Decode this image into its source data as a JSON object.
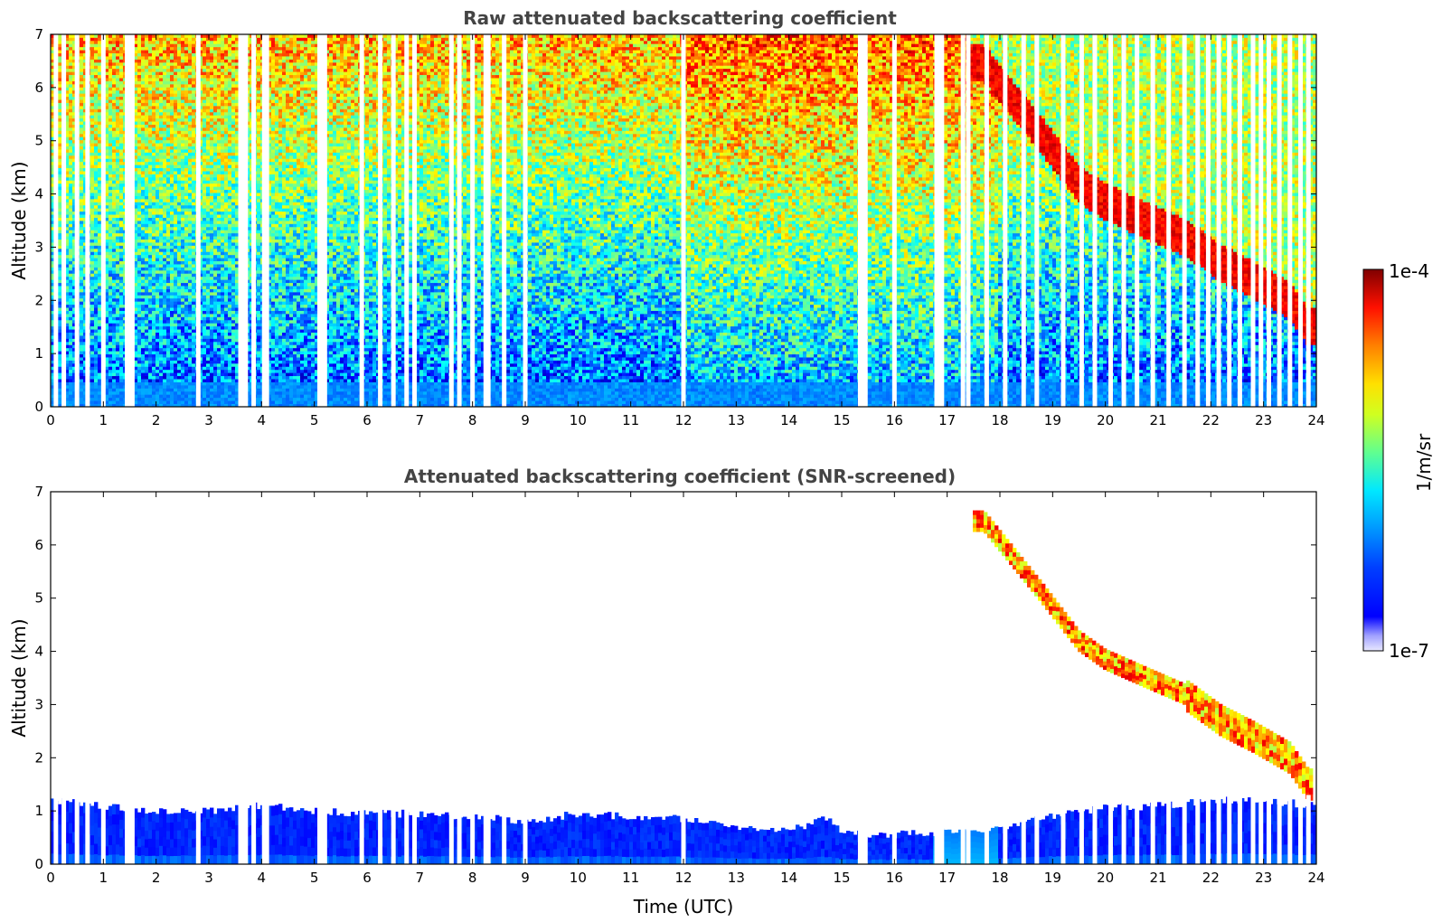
{
  "chart_data": [
    {
      "type": "heatmap",
      "title": "Raw attenuated backscattering coefficient",
      "xlabel": "",
      "ylabel": "Altitude (km)",
      "xlim": [
        0,
        24
      ],
      "ylim": [
        0,
        7
      ],
      "xticks": [
        0,
        1,
        2,
        3,
        4,
        5,
        6,
        7,
        8,
        9,
        10,
        11,
        12,
        13,
        14,
        15,
        16,
        17,
        18,
        19,
        20,
        21,
        22,
        23,
        24
      ],
      "yticks": [
        0,
        1,
        2,
        3,
        4,
        5,
        6,
        7
      ],
      "colorscale": "jet",
      "data_gaps_hours": [
        0.1,
        0.25,
        0.5,
        0.7,
        1.0,
        1.45,
        1.5,
        1.55,
        2.8,
        3.6,
        3.65,
        3.7,
        3.85,
        4.05,
        4.1,
        5.1,
        5.15,
        5.2,
        5.9,
        6.25,
        6.5,
        6.75,
        6.9,
        7.6,
        7.75,
        8.0,
        8.25,
        8.3,
        8.6,
        9.0,
        12.0,
        15.35,
        15.4,
        15.45,
        16.0,
        16.8,
        16.85,
        16.9,
        17.3,
        17.4,
        17.75,
        18.1,
        18.45,
        18.7,
        19.2,
        19.55,
        19.8,
        20.1,
        20.35,
        20.6,
        20.9,
        21.2,
        21.5,
        21.75,
        21.95,
        22.15,
        22.35,
        22.55,
        22.8,
        22.95,
        23.1,
        23.3,
        23.5,
        23.7,
        23.85
      ],
      "features": [
        {
          "name": "boundary layer",
          "x": [
            0,
            24
          ],
          "altitude_km": [
            0,
            0.5
          ],
          "level": "low"
        },
        {
          "name": "cloud layer",
          "x": [
            17.5,
            23.9
          ],
          "altitude_km": [
            [
              6.5,
              6.5
            ],
            [
              5.1,
              5.1
            ],
            [
              3.8,
              3.8
            ],
            [
              3.3,
              3.3
            ],
            [
              2.5,
              2.5
            ],
            [
              1.8,
              1.8
            ]
          ],
          "level": "high"
        }
      ]
    },
    {
      "type": "heatmap",
      "title": "Attenuated backscattering coefficient (SNR-screened)",
      "xlabel": "Time (UTC)",
      "ylabel": "Altitude (km)",
      "xlim": [
        0,
        24
      ],
      "ylim": [
        0,
        7
      ],
      "xticks": [
        0,
        1,
        2,
        3,
        4,
        5,
        6,
        7,
        8,
        9,
        10,
        11,
        12,
        13,
        14,
        15,
        16,
        17,
        18,
        19,
        20,
        21,
        22,
        23,
        24
      ],
      "yticks": [
        0,
        1,
        2,
        3,
        4,
        5,
        6,
        7
      ],
      "colorscale": "jet",
      "boundary_layer_top_km": [
        [
          0,
          1.2
        ],
        [
          1,
          1.1
        ],
        [
          2,
          1.0
        ],
        [
          3,
          1.0
        ],
        [
          4,
          1.1
        ],
        [
          5,
          1.0
        ],
        [
          6,
          0.95
        ],
        [
          7,
          0.95
        ],
        [
          8,
          0.9
        ],
        [
          9,
          0.8
        ],
        [
          10,
          0.95
        ],
        [
          11,
          0.9
        ],
        [
          12,
          0.85
        ],
        [
          13,
          0.7
        ],
        [
          14,
          0.6
        ],
        [
          14.7,
          0.9
        ],
        [
          15,
          0.6
        ],
        [
          16,
          0.55
        ],
        [
          17,
          0.6
        ],
        [
          18,
          0.7
        ],
        [
          19,
          0.9
        ],
        [
          20,
          1.05
        ],
        [
          21,
          1.1
        ],
        [
          22,
          1.2
        ],
        [
          23,
          1.2
        ],
        [
          24,
          1.1
        ]
      ],
      "cloud_path_km": [
        [
          17.7,
          6.45
        ],
        [
          18.8,
          5.1
        ],
        [
          19.5,
          4.2
        ],
        [
          20.0,
          3.85
        ],
        [
          20.8,
          3.5
        ],
        [
          21.5,
          3.2
        ],
        [
          22.2,
          2.7
        ],
        [
          22.8,
          2.4
        ],
        [
          23.5,
          2.0
        ],
        [
          23.85,
          1.5
        ]
      ]
    }
  ],
  "colorbar": {
    "label": "1/m/sr",
    "min_label": "1e-7",
    "max_label": "1e-4"
  },
  "colors": {
    "jet": [
      "#00007f",
      "#0000ff",
      "#007fff",
      "#00ffff",
      "#7fff7f",
      "#ffff00",
      "#ff7f00",
      "#ff0000",
      "#7f0000"
    ]
  }
}
